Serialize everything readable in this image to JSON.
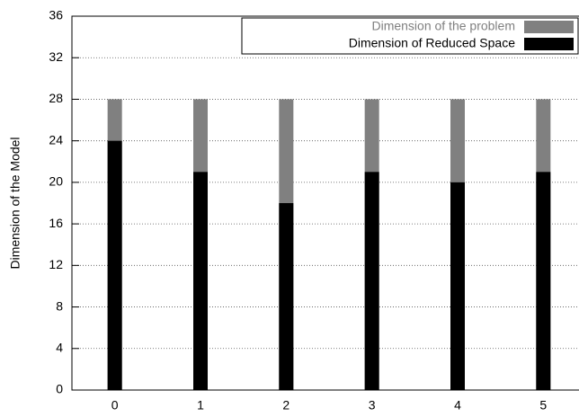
{
  "chart_data": {
    "type": "bar",
    "overlay": true,
    "ylabel": "Dimension of the Model",
    "categories": [
      "0",
      "1",
      "2",
      "3",
      "4",
      "5"
    ],
    "series": [
      {
        "name": "Dimension of the problem",
        "color": "#808080",
        "values": [
          28,
          28,
          28,
          28,
          28,
          28
        ]
      },
      {
        "name": "Dimension of Reduced Space",
        "color": "#000000",
        "values": [
          24,
          21,
          18,
          21,
          20,
          21
        ]
      }
    ],
    "ylim": [
      0,
      36
    ],
    "yticks": [
      0,
      4,
      8,
      12,
      16,
      20,
      24,
      28,
      32,
      36
    ],
    "grid": true,
    "legend": "top-right"
  }
}
